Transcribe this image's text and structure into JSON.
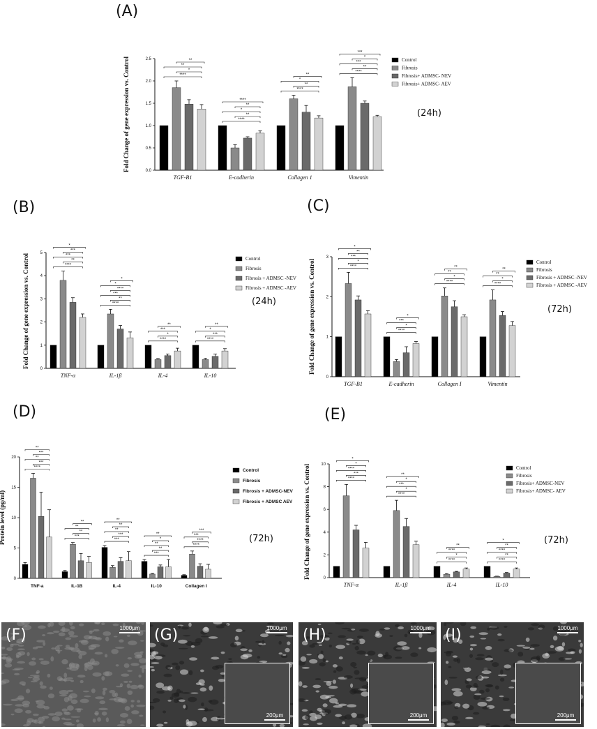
{
  "legend": {
    "a": [
      "Control",
      "Fibrosis",
      "Fibrosis+ ADMSC- NEV",
      "Fibrosis+ ADMSC- AEV"
    ],
    "b": [
      "Control",
      "Fibrosis",
      "Fibrosis + ADMSC -NEV",
      "Fibrosis + ADMSC -AEV"
    ],
    "c": [
      "Control",
      "Fibrosis",
      "Fibrosis + ADMSC -NEV",
      "Fibrosis + ADMSC -AEV"
    ],
    "d": [
      "Control",
      "Fibrosis",
      "Fibrosis + ADMSC-NEV",
      "Fibrosis + ADMSC AEV"
    ],
    "e": [
      "Control",
      "Fibrosis",
      "Fibrosis+ ADMSC-NEV",
      "Fibrosis+ ADMSC- AEV"
    ]
  },
  "colors": {
    "control": "#000000",
    "fibrosis": "#8a8a8a",
    "nev": "#6a6a6a",
    "aev": "#d2d2d2"
  },
  "chart_data": [
    {
      "id": "A",
      "type": "bar",
      "label": "(A)",
      "timepoint": "(24h)",
      "ylabel": "Fold Change of gene expression vs. Control",
      "categories": [
        "TGF-B1",
        "E-cadherin",
        "Collagen 1",
        "Vimentin"
      ],
      "ylim": [
        0,
        2.5
      ],
      "yticks": [
        "0.0",
        "0.5",
        "1.0",
        "1.5",
        "2.0",
        "2.5"
      ],
      "series": [
        {
          "name": "Control",
          "values": [
            1.0,
            1.0,
            1.0,
            1.0
          ],
          "errors": [
            0,
            0,
            0,
            0
          ]
        },
        {
          "name": "Fibrosis",
          "values": [
            1.85,
            0.5,
            1.6,
            1.87
          ],
          "errors": [
            0.15,
            0.07,
            0.08,
            0.2
          ]
        },
        {
          "name": "Fibrosis+ ADMSC- NEV",
          "values": [
            1.48,
            0.72,
            1.3,
            1.5
          ],
          "errors": [
            0.1,
            0.03,
            0.15,
            0.05
          ]
        },
        {
          "name": "Fibrosis+ ADMSC- AEV",
          "values": [
            1.37,
            0.83,
            1.17,
            1.2
          ],
          "errors": [
            0.1,
            0.05,
            0.05,
            0.03
          ]
        }
      ],
      "significance": [
        [
          "****",
          "*",
          "**",
          "**"
        ],
        [
          "****",
          "**",
          "*",
          "**",
          "****"
        ],
        [
          "****",
          "**",
          "*",
          "**"
        ],
        [
          "****",
          "**",
          "***",
          "*",
          "***"
        ]
      ]
    },
    {
      "id": "B",
      "type": "bar",
      "label": "(B)",
      "timepoint": "(24h)",
      "ylabel": "Fold Change of gene expression vs. Control",
      "categories": [
        "TNF-α",
        "IL-1β",
        "IL-4",
        "IL-10"
      ],
      "ylim": [
        0,
        5
      ],
      "yticks": [
        "0",
        "1",
        "2",
        "3",
        "4",
        "5"
      ],
      "series": [
        {
          "name": "Control",
          "values": [
            1.0,
            1.0,
            1.0,
            1.0
          ],
          "errors": [
            0,
            0,
            0,
            0
          ]
        },
        {
          "name": "Fibrosis",
          "values": [
            3.8,
            2.35,
            0.38,
            0.38
          ],
          "errors": [
            0.4,
            0.2,
            0.05,
            0.05
          ]
        },
        {
          "name": "Fibrosis + ADMSC -NEV",
          "values": [
            2.85,
            1.7,
            0.55,
            0.52
          ],
          "errors": [
            0.2,
            0.15,
            0.07,
            0.1
          ]
        },
        {
          "name": "Fibrosis + ADMSC -AEV",
          "values": [
            2.2,
            1.32,
            0.75,
            0.75
          ],
          "errors": [
            0.15,
            0.25,
            0.12,
            0.1
          ]
        }
      ],
      "significance": [
        [
          "****",
          "**",
          "***",
          "***",
          "*"
        ],
        [
          "****",
          "**",
          "***",
          "****",
          "*",
          "*"
        ],
        [
          "****",
          "*",
          "***",
          "**"
        ],
        [
          "****",
          "***",
          "*",
          "**"
        ]
      ]
    },
    {
      "id": "C",
      "type": "bar",
      "label": "(C)",
      "timepoint": "(72h)",
      "ylabel": "Fold Change of gene expression vs. Control",
      "categories": [
        "TGF-B1",
        "E-cadherin",
        "Collagen I",
        "Vimentin"
      ],
      "ylim": [
        0,
        3
      ],
      "yticks": [
        "0",
        "1",
        "2",
        "3"
      ],
      "series": [
        {
          "name": "Control",
          "values": [
            1.0,
            1.0,
            1.0,
            1.0
          ],
          "errors": [
            0,
            0,
            0,
            0
          ]
        },
        {
          "name": "Fibrosis",
          "values": [
            2.33,
            0.38,
            2.02,
            1.92
          ],
          "errors": [
            0.28,
            0.05,
            0.2,
            0.25
          ]
        },
        {
          "name": "Fibrosis + ADMSC -NEV",
          "values": [
            1.92,
            0.6,
            1.75,
            1.53
          ],
          "errors": [
            0.1,
            0.15,
            0.15,
            0.1
          ]
        },
        {
          "name": "Fibrosis + ADMSC -AEV",
          "values": [
            1.57,
            0.83,
            1.5,
            1.28
          ],
          "errors": [
            0.08,
            0.05,
            0.05,
            0.1
          ]
        }
      ],
      "significance": [
        [
          "****",
          "*",
          "***",
          "**",
          "*"
        ],
        [
          "****",
          "*",
          "***",
          "*"
        ],
        [
          "****",
          "*",
          "**",
          "**"
        ],
        [
          "****",
          "*",
          "**",
          "**"
        ]
      ]
    },
    {
      "id": "D",
      "type": "bar",
      "label": "(D)",
      "timepoint": "(72h)",
      "ylabel": "Protein level (pg/ml)",
      "categories": [
        "TNF-a",
        "IL-1B",
        "IL-4",
        "IL-10",
        "Collagen I"
      ],
      "ylim": [
        0,
        20
      ],
      "yticks": [
        "0",
        "5",
        "10",
        "15",
        "20"
      ],
      "series": [
        {
          "name": "Control",
          "values": [
            2.3,
            1.1,
            5.1,
            2.8,
            0.5
          ],
          "errors": [
            0.3,
            0.2,
            0.3,
            0.3,
            0.1
          ]
        },
        {
          "name": "Fibrosis",
          "values": [
            16.5,
            5.6,
            1.8,
            0.7,
            4.0
          ],
          "errors": [
            0.8,
            0.3,
            0.3,
            0.1,
            0.5
          ]
        },
        {
          "name": "Fibrosis + ADMSC-NEV",
          "values": [
            10.2,
            2.9,
            2.8,
            1.9,
            2.0
          ],
          "errors": [
            4.0,
            1.2,
            0.6,
            0.3,
            0.4
          ]
        },
        {
          "name": "Fibrosis + ADMSC AEV",
          "values": [
            6.8,
            2.6,
            2.9,
            1.9,
            1.5
          ],
          "errors": [
            4.5,
            1.0,
            1.5,
            1.2,
            0.8
          ]
        }
      ],
      "significance": [
        [
          "****",
          "***",
          "**",
          "***",
          "**",
          "**"
        ],
        [
          "***",
          "**",
          "**",
          "**"
        ],
        [
          "***",
          "***",
          "**",
          "**",
          "**"
        ],
        [
          "***",
          "**",
          "**",
          "*",
          "**"
        ],
        [
          "****",
          "****",
          "***",
          "***"
        ]
      ]
    },
    {
      "id": "E",
      "type": "bar",
      "label": "(E)",
      "timepoint": "(72h)",
      "ylabel": "Fold Change of gene expression vs. Control",
      "categories": [
        "TNF-α",
        "IL-1β",
        "IL-4",
        "IL-10"
      ],
      "ylim": [
        0,
        10
      ],
      "yticks": [
        "0",
        "2",
        "4",
        "6",
        "8",
        "10"
      ],
      "series": [
        {
          "name": "Control",
          "values": [
            1.0,
            1.0,
            1.0,
            1.0
          ],
          "errors": [
            0,
            0,
            0,
            0
          ]
        },
        {
          "name": "Fibrosis",
          "values": [
            7.2,
            5.9,
            0.3,
            0.1
          ],
          "errors": [
            1.0,
            0.9,
            0.05,
            0.03
          ]
        },
        {
          "name": "Fibrosis+ ADMSC-NEV",
          "values": [
            4.2,
            4.5,
            0.5,
            0.4
          ],
          "errors": [
            0.4,
            0.7,
            0.05,
            0.05
          ]
        },
        {
          "name": "Fibrosis+ ADMSC- AEV",
          "values": [
            2.6,
            2.9,
            0.75,
            0.75
          ],
          "errors": [
            0.5,
            0.3,
            0.1,
            0.1
          ]
        }
      ],
      "significance": [
        [
          "****",
          "***",
          "****",
          "*",
          "*"
        ],
        [
          "****",
          "*",
          "***",
          "*",
          "**"
        ],
        [
          "****",
          "*",
          "****",
          "**"
        ],
        [
          "****",
          "**",
          "****",
          "**",
          "*"
        ]
      ]
    }
  ],
  "micrographs": [
    {
      "label": "(F)",
      "scale": "1000μm",
      "inset_scale": ""
    },
    {
      "label": "(G)",
      "scale": "1000μm",
      "inset_scale": "200μm"
    },
    {
      "label": "(H)",
      "scale": "1000μm",
      "inset_scale": "200μm"
    },
    {
      "label": "(I)",
      "scale": "1000μm",
      "inset_scale": "200μm"
    }
  ]
}
